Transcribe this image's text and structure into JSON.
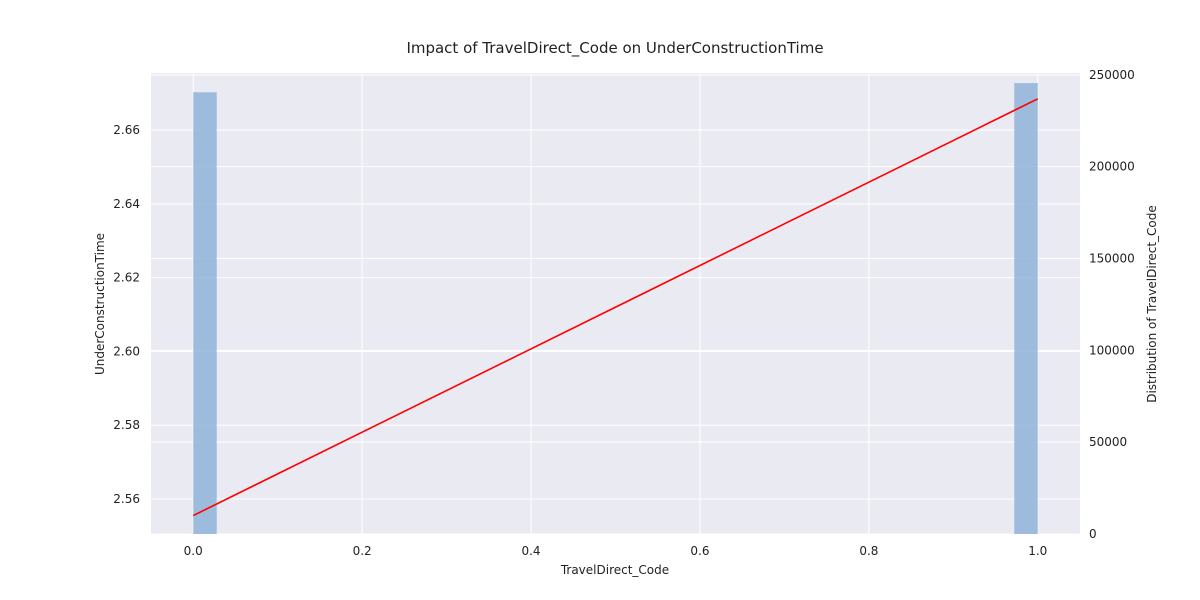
{
  "chart_data": {
    "type": "bar+line",
    "title": "Impact of TravelDirect_Code on UnderConstructionTime",
    "xlabel": "TravelDirect_Code",
    "ylabel_left": "UnderConstructionTime",
    "ylabel_right": "Distribution of TravelDirect_Code",
    "xlim": [
      -0.05,
      1.05
    ],
    "ylim_left": [
      2.5505,
      2.6755
    ],
    "ylim_right": [
      0,
      251000
    ],
    "x_ticks": [
      "0.0",
      "0.2",
      "0.4",
      "0.6",
      "0.8",
      "1.0"
    ],
    "x_tick_values": [
      0,
      0.2,
      0.4,
      0.6,
      0.8,
      1.0
    ],
    "y_left_ticks": [
      "2.56",
      "2.58",
      "2.60",
      "2.62",
      "2.64",
      "2.66"
    ],
    "y_left_tick_values": [
      2.56,
      2.58,
      2.6,
      2.62,
      2.64,
      2.66
    ],
    "y_right_ticks": [
      "0",
      "50000",
      "100000",
      "150000",
      "200000",
      "250000"
    ],
    "y_right_tick_values": [
      0,
      50000,
      100000,
      150000,
      200000,
      250000
    ],
    "histogram": {
      "axis": "right",
      "bins": [
        {
          "x_start": 0.0,
          "x_end": 0.0278,
          "count": 240500
        },
        {
          "x_start": 0.9722,
          "x_end": 1.0,
          "count": 245500
        }
      ],
      "color": "#8fb3d9"
    },
    "regression_line": {
      "axis": "left",
      "x": [
        0.0,
        1.0
      ],
      "y": [
        2.5555,
        2.6685
      ],
      "color": "#ff0000"
    },
    "grid": true,
    "plot_background": "#eaeaf2",
    "grid_color": "#ffffff"
  }
}
